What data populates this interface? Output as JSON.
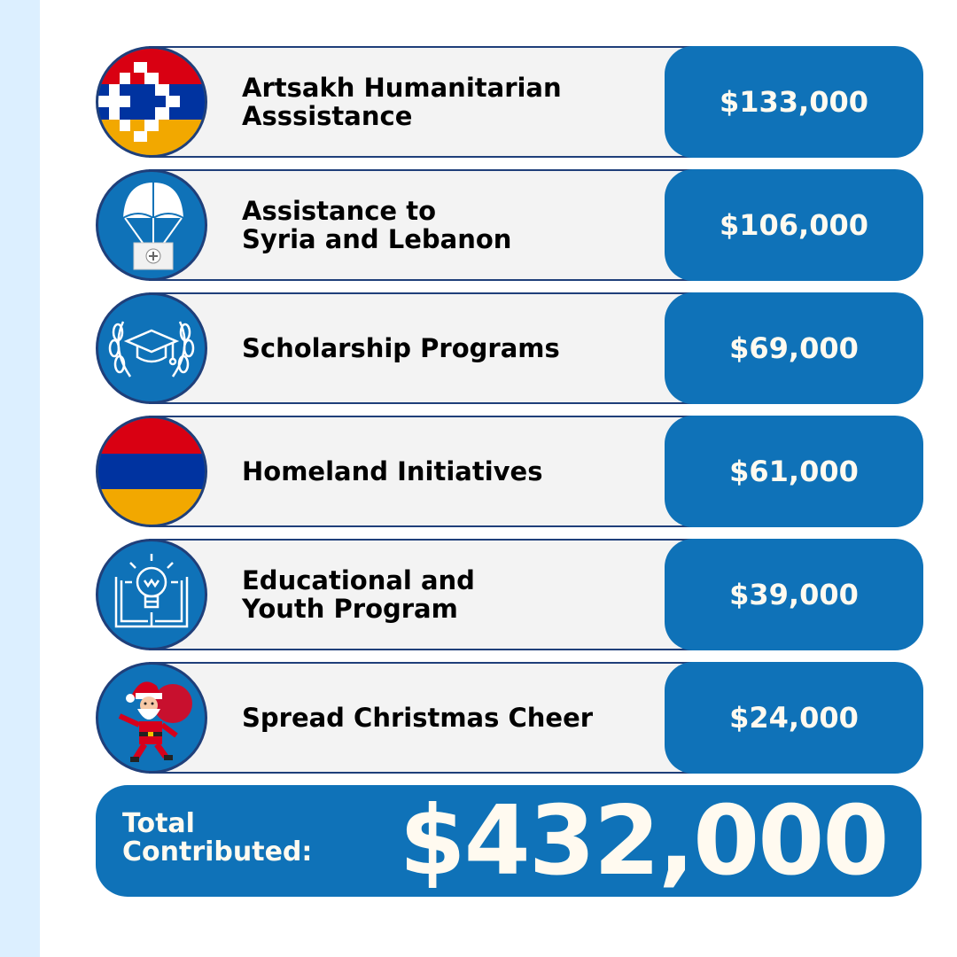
{
  "items": [
    {
      "line1": "Artsakh Humanitarian",
      "line2": "Asssistance",
      "amount": "$133,000",
      "icon": "artsakh-flag-icon"
    },
    {
      "line1": "Assistance to",
      "line2": "Syria and Lebanon",
      "amount": "$106,000",
      "icon": "parachute-aid-icon"
    },
    {
      "line1": "Scholarship Programs",
      "line2": "",
      "amount": "$69,000",
      "icon": "graduation-cap-laurel-icon"
    },
    {
      "line1": "Homeland Initiatives",
      "line2": "",
      "amount": "$61,000",
      "icon": "armenia-flag-icon"
    },
    {
      "line1": "Educational and",
      "line2": "Youth Program",
      "amount": "$39,000",
      "icon": "lightbulb-book-icon"
    },
    {
      "line1": "Spread Christmas Cheer",
      "line2": "",
      "amount": "$24,000",
      "icon": "santa-claus-icon"
    }
  ],
  "total": {
    "line1": "Total",
    "line2": "Contributed:",
    "amount": "$432,000"
  },
  "colors": {
    "accent": "#0f72b8",
    "row_background": "#f3f3f3",
    "side_strip": "#dcefff",
    "border": "#1f3f7a"
  }
}
